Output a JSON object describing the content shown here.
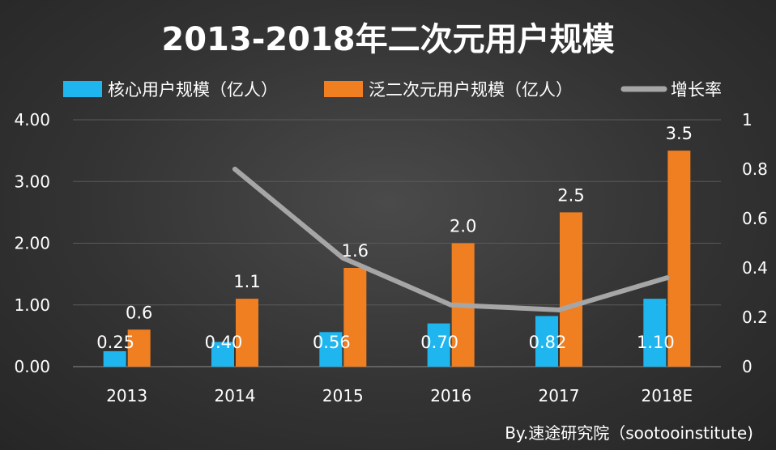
{
  "chart_data": {
    "type": "bar",
    "title": "2013-2018年二次元用户规模",
    "categories": [
      "2013",
      "2014",
      "2015",
      "2016",
      "2017",
      "2018E"
    ],
    "series": [
      {
        "name": "核心用户规模（亿人）",
        "type": "bar",
        "axis": "left",
        "color": "#1fb6f0",
        "values": [
          0.25,
          0.4,
          0.56,
          0.7,
          0.82,
          1.1
        ],
        "labels": [
          "0.25",
          "0.40",
          "0.56",
          "0.70",
          "0.82",
          "1.10"
        ]
      },
      {
        "name": "泛二次元用户规模（亿人）",
        "type": "bar",
        "axis": "left",
        "color": "#f07f22",
        "values": [
          0.6,
          1.1,
          1.6,
          2.0,
          2.5,
          3.5
        ],
        "labels": [
          "0.6",
          "1.1",
          "1.6",
          "2.0",
          "2.5",
          "3.5"
        ]
      },
      {
        "name": "增长率",
        "type": "line",
        "axis": "right",
        "color": "#a6a6a6",
        "values": [
          null,
          0.8,
          0.44,
          0.25,
          0.23,
          0.36
        ]
      }
    ],
    "y_left": {
      "min": 0,
      "max": 4,
      "ticks": [
        "0.00",
        "1.00",
        "2.00",
        "3.00",
        "4.00"
      ]
    },
    "y_right": {
      "min": 0,
      "max": 1,
      "ticks": [
        "0",
        "0.2",
        "0.4",
        "0.6",
        "0.8",
        "1"
      ]
    },
    "grid": true,
    "legend_position": "top"
  },
  "source": "By.速途研究院（sootooinstitute)"
}
